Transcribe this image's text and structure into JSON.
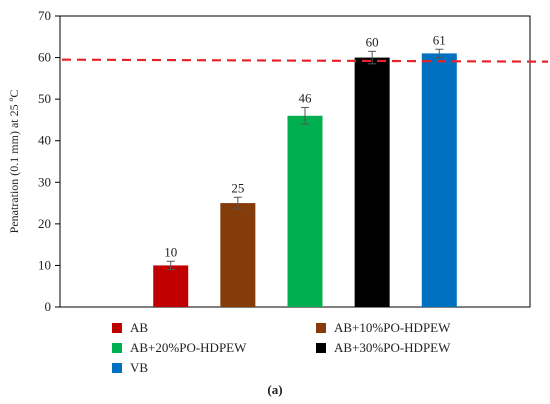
{
  "chart_data": {
    "type": "bar",
    "title": "",
    "xlabel": "",
    "ylabel": "Penatration (0.1 mm) at 25 ºC",
    "ylim": [
      0,
      70
    ],
    "yticks": [
      0,
      10,
      20,
      30,
      40,
      50,
      60,
      70
    ],
    "grid": false,
    "legend_position": "bottom",
    "reference_line": {
      "y": 59.5,
      "style": "dashed",
      "color": "#e8232a"
    },
    "series": [
      {
        "name": "AB",
        "value": 10,
        "error": 1.0,
        "color": "#c00000",
        "label": "10"
      },
      {
        "name": "AB+10%PO-HDPEW",
        "value": 25,
        "error": 1.4,
        "color": "#843c0b",
        "label": "25"
      },
      {
        "name": "AB+20%PO-HDPEW",
        "value": 46,
        "error": 2.0,
        "color": "#00b050",
        "label": "46"
      },
      {
        "name": "AB+30%PO-HDPEW",
        "value": 60,
        "error": 1.5,
        "color": "#000000",
        "label": "60"
      },
      {
        "name": "VB",
        "value": 61,
        "error": 1.0,
        "color": "#0070c0",
        "label": "61"
      }
    ]
  },
  "caption": "(a)"
}
